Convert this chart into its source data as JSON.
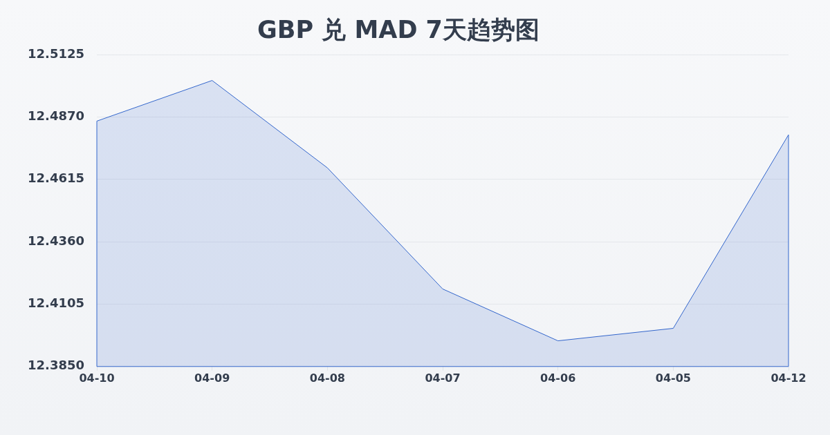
{
  "chart_data": {
    "type": "area",
    "title": "GBP 兑 MAD 7天趋势图",
    "categories": [
      "04-10",
      "04-09",
      "04-08",
      "04-07",
      "04-06",
      "04-05",
      "04-12"
    ],
    "series": [
      {
        "color": "#3366cc",
        "values": [
          12.4853,
          12.5019,
          12.4662,
          12.4167,
          12.3955,
          12.4006,
          12.4797
        ]
      }
    ],
    "ylim": [
      12.385,
      12.5125
    ],
    "yticks": [
      {
        "value": 12.385,
        "label": "12.3850"
      },
      12.4105,
      {
        "value": 12.436,
        "label": "12.4360"
      },
      12.4615,
      {
        "value": 12.487,
        "label": "12.4870"
      },
      12.5125
    ],
    "grid": "y",
    "legend": false,
    "marker": "none"
  }
}
